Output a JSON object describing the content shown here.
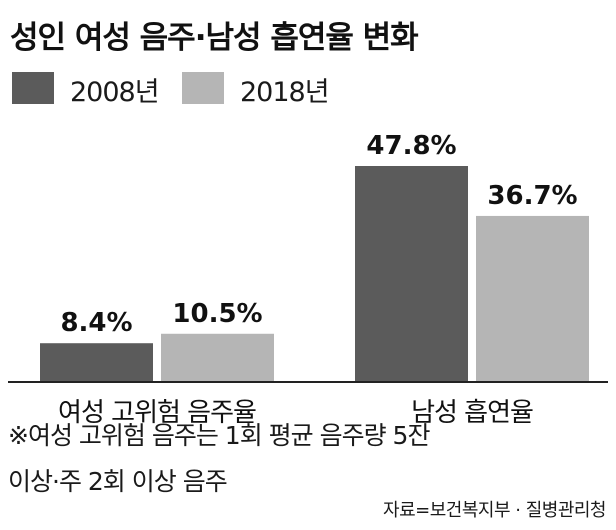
{
  "title": "성인 여성 음주·남성 흡연율 변화",
  "colors": {
    "series_2008": "#5b5b5b",
    "series_2018": "#b5b5b5",
    "axis": "#222222"
  },
  "chart_data": {
    "type": "bar",
    "title": "성인 여성 음주·남성 흡연율 변화",
    "categories": [
      "여성 고위험 음주율",
      "남성 흡연율"
    ],
    "series": [
      {
        "name": "2008년",
        "values": [
          8.4,
          47.8
        ],
        "labels": [
          "8.4%",
          "47.8%"
        ]
      },
      {
        "name": "2018년",
        "values": [
          10.5,
          36.7
        ],
        "labels": [
          "10.5%",
          "36.7%"
        ]
      }
    ],
    "ylim": [
      0,
      50
    ],
    "xlabel": "",
    "ylabel": "",
    "grid": false,
    "legend": "top-left"
  },
  "notes": [
    "※여성 고위험 음주는 1회 평균 음주량 5잔",
    "이상·주 2회 이상 음주"
  ],
  "source": "자료=보건복지부 · 질병관리청"
}
